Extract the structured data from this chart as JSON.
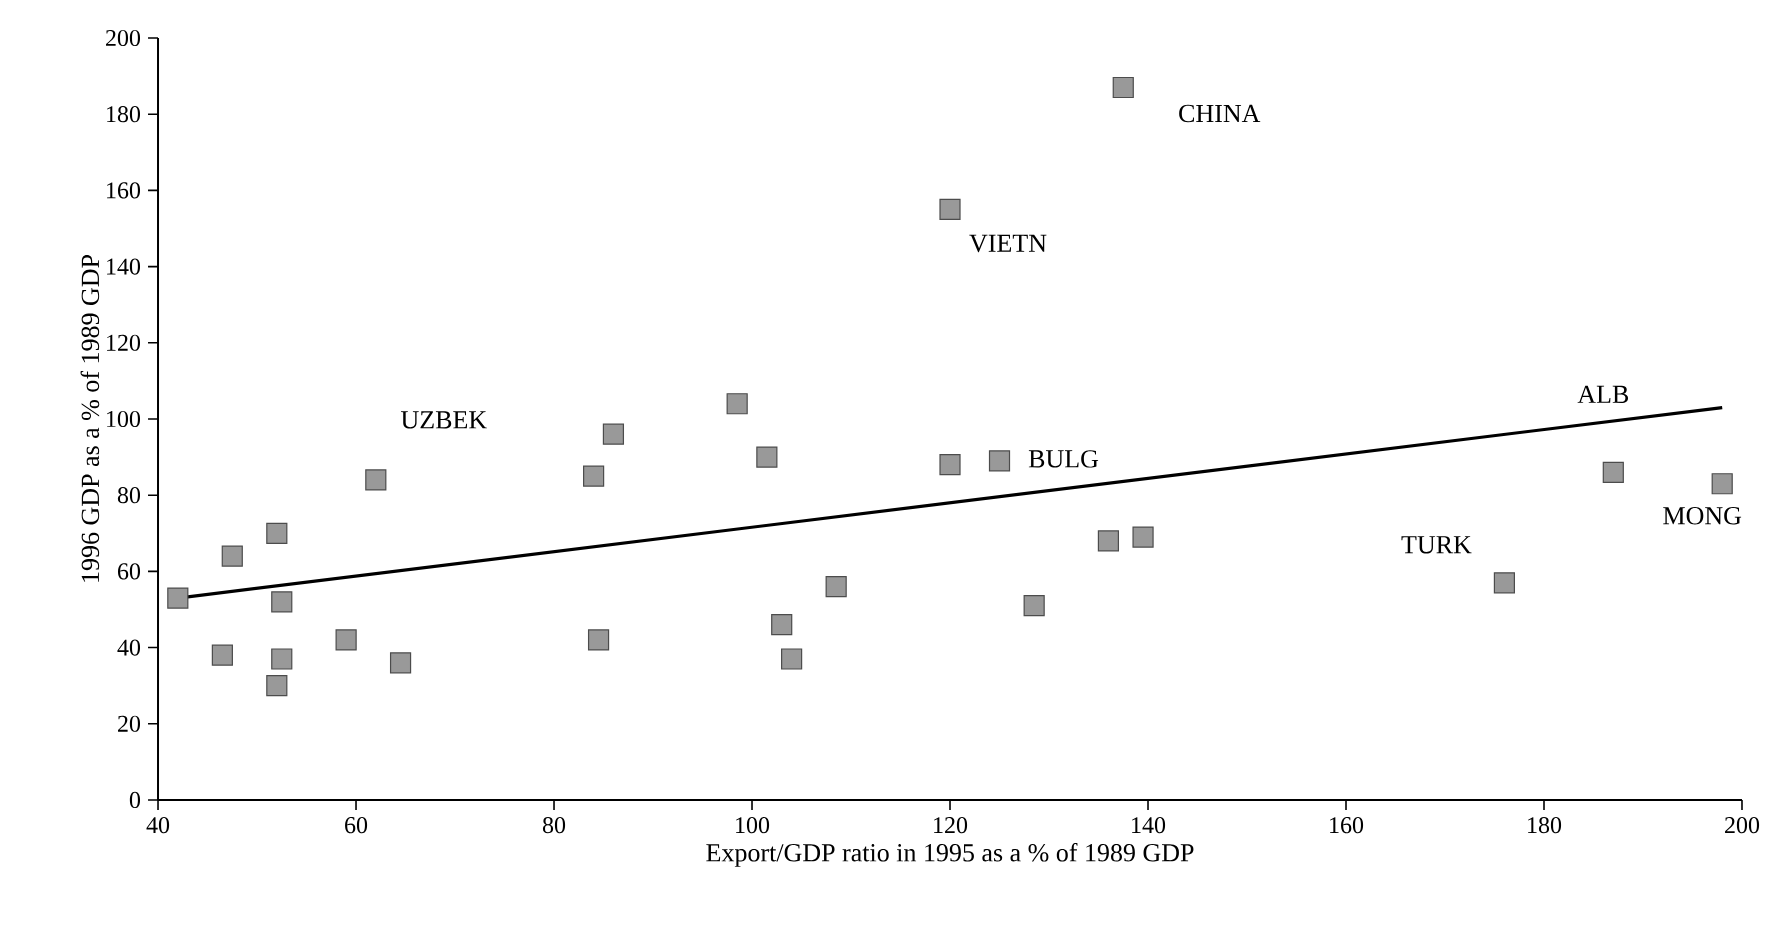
{
  "chart_data": {
    "type": "scatter",
    "xlabel": "Export/GDP ratio in 1995 as a % of 1989 GDP",
    "ylabel": "1996 GDP as a % of 1989 GDP",
    "xlim": [
      40,
      200
    ],
    "xticks": [
      40,
      60,
      80,
      100,
      120,
      140,
      160,
      180,
      200
    ],
    "ylim": [
      0,
      200
    ],
    "yticks": [
      0,
      20,
      40,
      60,
      80,
      100,
      120,
      140,
      160,
      180,
      200
    ],
    "series": [
      {
        "marker": "square",
        "color": "#999999",
        "x": [
          42,
          46.5,
          47.5,
          52,
          52.5,
          52.5,
          52,
          59,
          62,
          64.5,
          84,
          86,
          84.5,
          98.5,
          101.5,
          103,
          104,
          108.5,
          120,
          120,
          125,
          128.5,
          136,
          137.5,
          139.5,
          176,
          187,
          198
        ],
        "values": [
          53,
          38,
          64,
          70,
          52,
          37,
          30,
          42,
          84,
          36,
          85,
          96,
          42,
          104,
          90,
          46,
          37,
          56,
          88,
          155,
          89,
          51,
          68,
          187,
          69,
          57,
          86,
          83
        ]
      },
      {
        "type": "line",
        "marker": "none",
        "color": "#000000",
        "x": [
          42,
          198
        ],
        "values": [
          53,
          103
        ]
      }
    ],
    "annotations": [
      {
        "text": "CHINA",
        "x": 137.5,
        "y": 187
      },
      {
        "text": "VIETN",
        "x": 120,
        "y": 155
      },
      {
        "text": "UZBEK",
        "x": 62,
        "y": 84
      },
      {
        "text": "BULG",
        "x": 125,
        "y": 89
      },
      {
        "text": "ALB",
        "x": 187,
        "y": 86
      },
      {
        "text": "TURK",
        "x": 176,
        "y": 57
      },
      {
        "text": "MONG",
        "x": 198,
        "y": 83
      }
    ]
  }
}
